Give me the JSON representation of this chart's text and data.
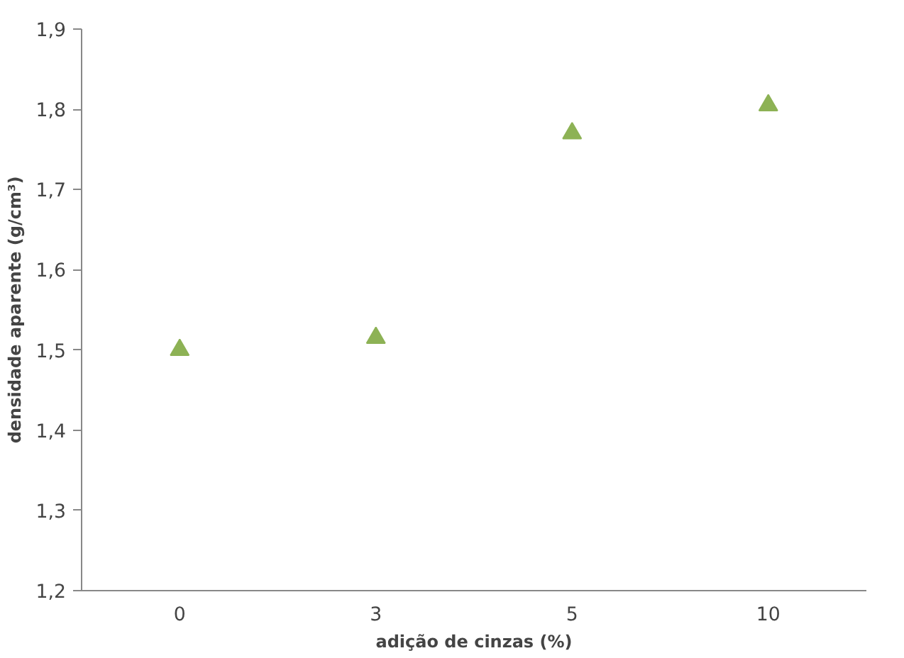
{
  "chart_data": {
    "type": "scatter",
    "xlabel": "adição de cinzas (%)",
    "ylabel": "densidade aparente (g/cm³)",
    "categories": [
      "0",
      "3",
      "5",
      "10"
    ],
    "series": [
      {
        "color": "#8db255",
        "values": [
          1.5,
          1.515,
          1.77,
          1.805
        ]
      }
    ],
    "ylim": [
      1.2,
      1.9
    ],
    "yticks": [
      {
        "value": 1.2,
        "label": "1,2"
      },
      {
        "value": 1.3,
        "label": "1,3"
      },
      {
        "value": 1.4,
        "label": "1,4"
      },
      {
        "value": 1.5,
        "label": "1,5"
      },
      {
        "value": 1.6,
        "label": "1,6"
      },
      {
        "value": 1.7,
        "label": "1,7"
      },
      {
        "value": 1.8,
        "label": "1,8"
      },
      {
        "value": 1.9,
        "label": "1,9"
      }
    ],
    "grid": false,
    "marker": "triangle"
  }
}
